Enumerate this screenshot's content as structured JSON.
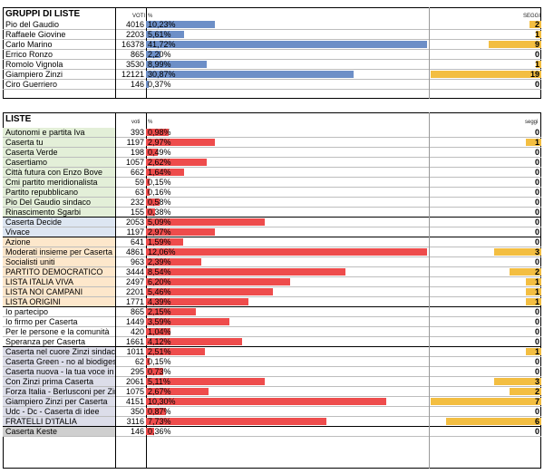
{
  "colors": {
    "gruppi_bar": "#6d8fc7",
    "liste_bar": "#ee4c4c",
    "seats_bar": "#f3be41",
    "bg_green": "#e3efd8",
    "bg_blue": "#dde6f2",
    "bg_orange": "#fde7cb",
    "bg_white": "#ffffff",
    "bg_lilac": "#dcdde9",
    "bg_gray": "#cfcfcf"
  },
  "gruppi": {
    "title": "GRUPPI DI LISTE",
    "votes_header": "VOTI",
    "pct_header": "%",
    "seats_header": "SEGGI",
    "max_pct": 41.72,
    "max_seats": 19,
    "rows": [
      {
        "name": "Pio del Gaudio",
        "votes": "4016",
        "pct_label": "10,23%",
        "pct": 10.23,
        "seats": "2",
        "seats_n": 2
      },
      {
        "name": "Raffaele Giovine",
        "votes": "2203",
        "pct_label": "5,61%",
        "pct": 5.61,
        "seats": "1",
        "seats_n": 1
      },
      {
        "name": "Carlo Marino",
        "votes": "16378",
        "pct_label": "41,72%",
        "pct": 41.72,
        "seats": "9",
        "seats_n": 9
      },
      {
        "name": "Errico Ronzo",
        "votes": "865",
        "pct_label": "2,20%",
        "pct": 2.2,
        "seats": "0",
        "seats_n": 0
      },
      {
        "name": "Romolo Vignola",
        "votes": "3530",
        "pct_label": "8,99%",
        "pct": 8.99,
        "seats": "1",
        "seats_n": 1
      },
      {
        "name": "Giampiero Zinzi",
        "votes": "12121",
        "pct_label": "30,87%",
        "pct": 30.87,
        "seats": "19",
        "seats_n": 19
      },
      {
        "name": "Ciro Guerriero",
        "votes": "146",
        "pct_label": "0,37%",
        "pct": 0.37,
        "seats": "0",
        "seats_n": 0
      }
    ]
  },
  "liste": {
    "title": "LISTE",
    "votes_header": "voti",
    "pct_header": "%",
    "seats_header": "seggi",
    "max_pct": 12.06,
    "max_seats": 7,
    "rows": [
      {
        "name": "Autonomi e partita Iva",
        "votes": "393",
        "pct_label": "0,98%",
        "pct": 0.98,
        "seats": "0",
        "seats_n": 0,
        "group": "green"
      },
      {
        "name": "Caserta tu",
        "votes": "1197",
        "pct_label": "2,97%",
        "pct": 2.97,
        "seats": "1",
        "seats_n": 1,
        "group": "green"
      },
      {
        "name": "Caserta Verde",
        "votes": "198",
        "pct_label": "0,49%",
        "pct": 0.49,
        "seats": "0",
        "seats_n": 0,
        "group": "green"
      },
      {
        "name": "Casertiamo",
        "votes": "1057",
        "pct_label": "2,62%",
        "pct": 2.62,
        "seats": "0",
        "seats_n": 0,
        "group": "green"
      },
      {
        "name": "Città futura con Enzo Bove",
        "votes": "662",
        "pct_label": "1,64%",
        "pct": 1.64,
        "seats": "0",
        "seats_n": 0,
        "group": "green"
      },
      {
        "name": "Cmi partito meridionalista",
        "votes": "59",
        "pct_label": "0,15%",
        "pct": 0.15,
        "seats": "0",
        "seats_n": 0,
        "group": "green"
      },
      {
        "name": "Partito repubblicano",
        "votes": "63",
        "pct_label": "0,16%",
        "pct": 0.16,
        "seats": "0",
        "seats_n": 0,
        "group": "green"
      },
      {
        "name": "Pio Del Gaudio sindaco",
        "votes": "232",
        "pct_label": "0,58%",
        "pct": 0.58,
        "seats": "0",
        "seats_n": 0,
        "group": "green"
      },
      {
        "name": "Rinascimento Sgarbi",
        "votes": "155",
        "pct_label": "0,38%",
        "pct": 0.38,
        "seats": "0",
        "seats_n": 0,
        "group": "green"
      },
      {
        "name": "Caserta Decide",
        "votes": "2053",
        "pct_label": "5,09%",
        "pct": 5.09,
        "seats": "0",
        "seats_n": 0,
        "group": "blue"
      },
      {
        "name": "Vivace",
        "votes": "1197",
        "pct_label": "2,97%",
        "pct": 2.97,
        "seats": "0",
        "seats_n": 0,
        "group": "blue"
      },
      {
        "name": "Azione",
        "votes": "641",
        "pct_label": "1,59%",
        "pct": 1.59,
        "seats": "0",
        "seats_n": 0,
        "group": "orange"
      },
      {
        "name": "Moderati insieme per Caserta",
        "votes": "4861",
        "pct_label": "12,06%",
        "pct": 12.06,
        "seats": "3",
        "seats_n": 3,
        "group": "orange"
      },
      {
        "name": "Socialisti uniti",
        "votes": "963",
        "pct_label": "2,39%",
        "pct": 2.39,
        "seats": "0",
        "seats_n": 0,
        "group": "orange"
      },
      {
        "name": "PARTITO DEMOCRATICO",
        "votes": "3444",
        "pct_label": "8,54%",
        "pct": 8.54,
        "seats": "2",
        "seats_n": 2,
        "group": "orange"
      },
      {
        "name": "LISTA ITALIA VIVA",
        "votes": "2497",
        "pct_label": "6,20%",
        "pct": 6.2,
        "seats": "1",
        "seats_n": 1,
        "group": "orange"
      },
      {
        "name": "LISTA NOI CAMPANI",
        "votes": "2201",
        "pct_label": "5,46%",
        "pct": 5.46,
        "seats": "1",
        "seats_n": 1,
        "group": "orange"
      },
      {
        "name": "LISTA ORIGINI",
        "votes": "1771",
        "pct_label": "4,39%",
        "pct": 4.39,
        "seats": "1",
        "seats_n": 1,
        "group": "orange"
      },
      {
        "name": "Io partecipo",
        "votes": "865",
        "pct_label": "2,15%",
        "pct": 2.15,
        "seats": "0",
        "seats_n": 0,
        "group": "white"
      },
      {
        "name": "Io firmo per Caserta",
        "votes": "1449",
        "pct_label": "3,59%",
        "pct": 3.59,
        "seats": "0",
        "seats_n": 0,
        "group": "white"
      },
      {
        "name": "Per le persone e la comunità",
        "votes": "420",
        "pct_label": "1,04%",
        "pct": 1.04,
        "seats": "0",
        "seats_n": 0,
        "group": "white"
      },
      {
        "name": "Speranza per Caserta",
        "votes": "1661",
        "pct_label": "4,12%",
        "pct": 4.12,
        "seats": "0",
        "seats_n": 0,
        "group": "white"
      },
      {
        "name": "Caserta nel cuore Zinzi sindaco",
        "votes": "1011",
        "pct_label": "2,51%",
        "pct": 2.51,
        "seats": "1",
        "seats_n": 1,
        "group": "lilac"
      },
      {
        "name": "Caserta Green - no al biodigestore",
        "votes": "62",
        "pct_label": "0,15%",
        "pct": 0.15,
        "seats": "0",
        "seats_n": 0,
        "group": "lilac"
      },
      {
        "name": "Caserta nuova - la tua voce in città",
        "votes": "295",
        "pct_label": "0,73%",
        "pct": 0.73,
        "seats": "0",
        "seats_n": 0,
        "group": "lilac"
      },
      {
        "name": "Con Zinzi prima Caserta",
        "votes": "2061",
        "pct_label": "5,11%",
        "pct": 5.11,
        "seats": "3",
        "seats_n": 3,
        "group": "lilac"
      },
      {
        "name": "Forza Italia - Berlusconi per Zinzi",
        "votes": "1075",
        "pct_label": "2,67%",
        "pct": 2.67,
        "seats": "2",
        "seats_n": 2,
        "group": "lilac"
      },
      {
        "name": "Giampiero Zinzi per Caserta",
        "votes": "4151",
        "pct_label": "10,30%",
        "pct": 10.3,
        "seats": "7",
        "seats_n": 7,
        "group": "lilac"
      },
      {
        "name": "Udc - Dc - Caserta di idee",
        "votes": "350",
        "pct_label": "0,87%",
        "pct": 0.87,
        "seats": "0",
        "seats_n": 0,
        "group": "lilac"
      },
      {
        "name": "FRATELLI D'ITALIA",
        "votes": "3116",
        "pct_label": "7,73%",
        "pct": 7.73,
        "seats": "6",
        "seats_n": 6,
        "group": "lilac"
      },
      {
        "name": "Caserta Keste",
        "votes": "146",
        "pct_label": "0,36%",
        "pct": 0.36,
        "seats": "0",
        "seats_n": 0,
        "group": "gray"
      }
    ]
  }
}
